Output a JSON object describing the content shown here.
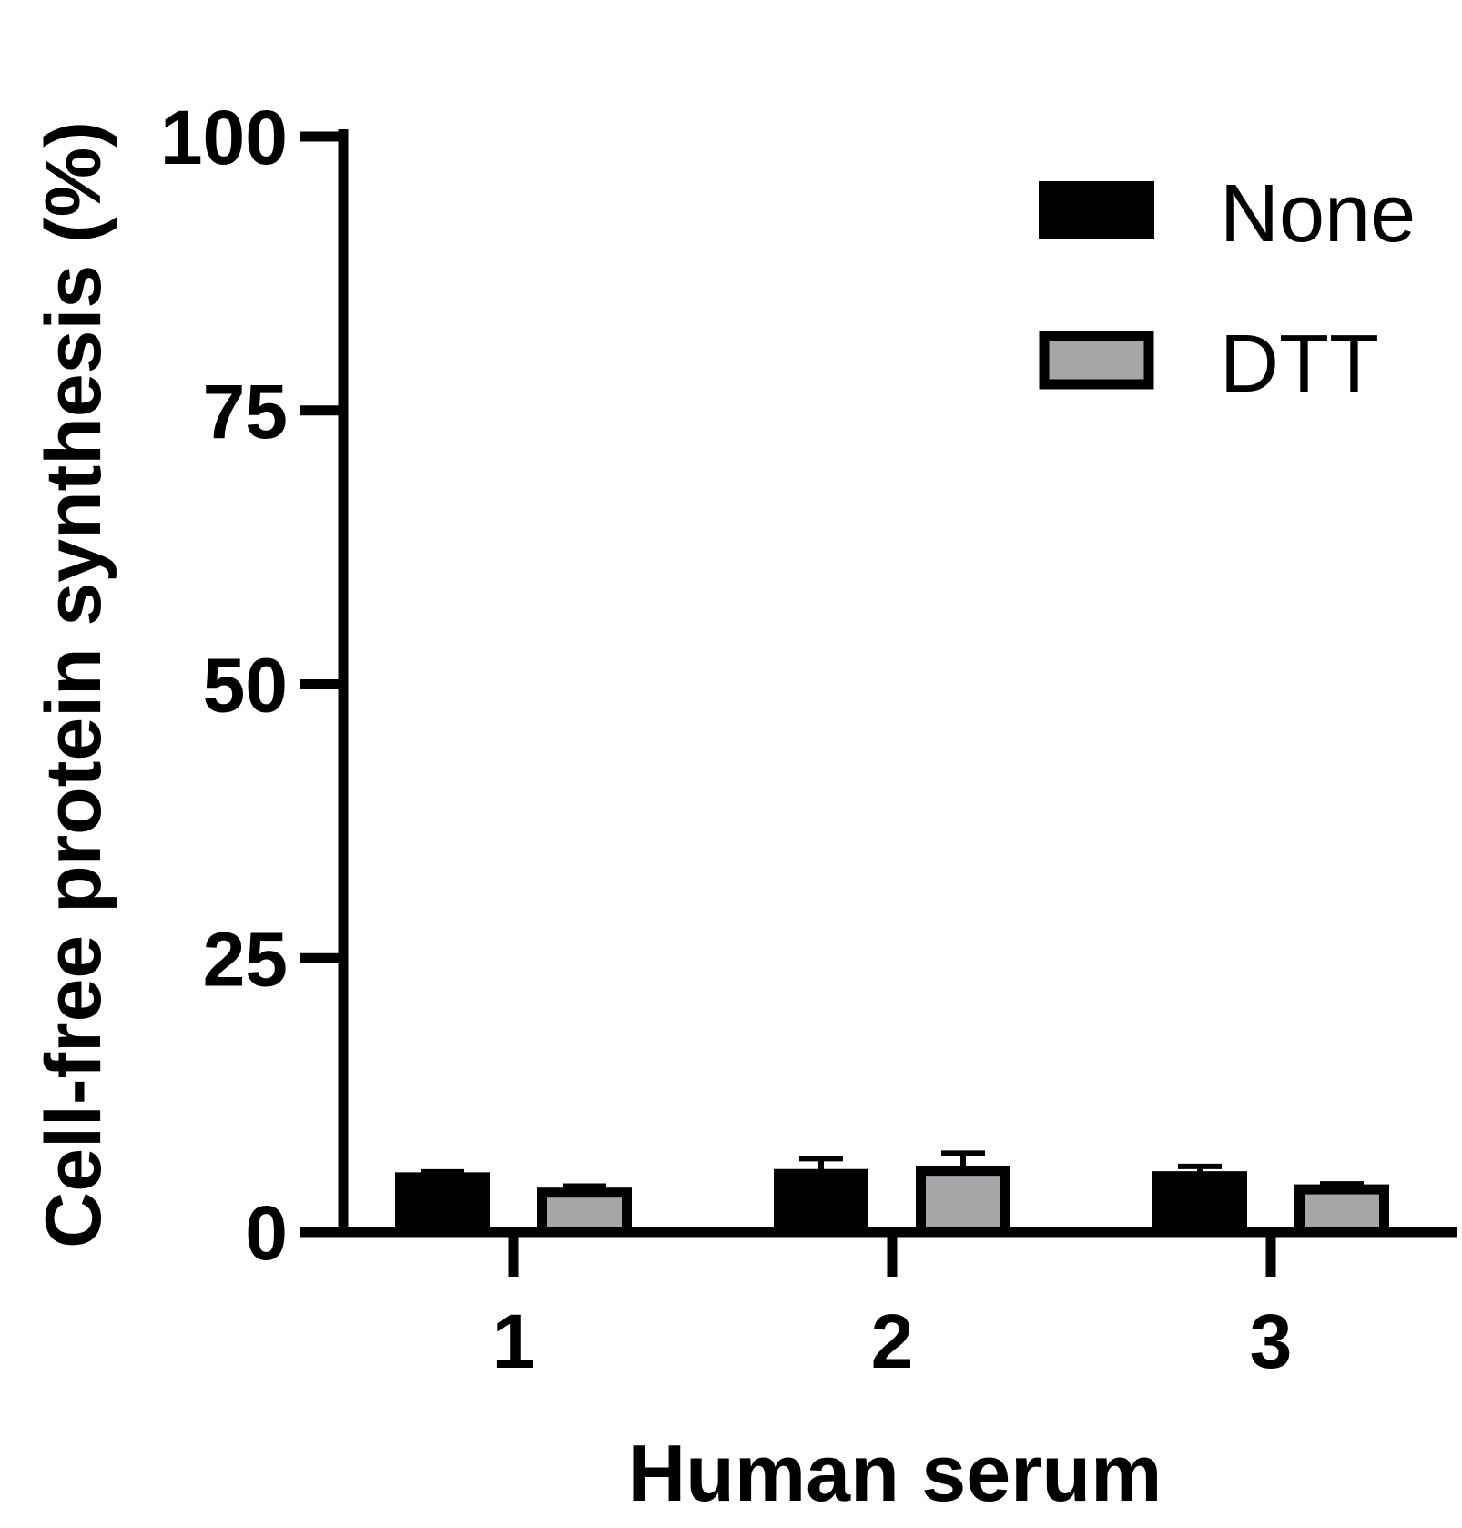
{
  "chart_data": {
    "type": "bar",
    "categories": [
      "1",
      "2",
      "3"
    ],
    "series": [
      {
        "name": "None",
        "values": [
          5.0,
          5.3,
          5.1
        ],
        "errors": [
          0.5,
          1.4,
          0.9
        ],
        "color": "#000000"
      },
      {
        "name": "DTT",
        "values": [
          3.6,
          5.6,
          3.9
        ],
        "errors": [
          0.6,
          1.6,
          0.5
        ],
        "color": "#a6a6a8"
      }
    ],
    "xlabel": "Human serum",
    "ylabel": "Cell-free protein synthesis (%)",
    "ylim": [
      0,
      100
    ],
    "yticks": [
      "0",
      "25",
      "50",
      "75",
      "100"
    ],
    "grid": false,
    "legend_position": "top-right"
  }
}
